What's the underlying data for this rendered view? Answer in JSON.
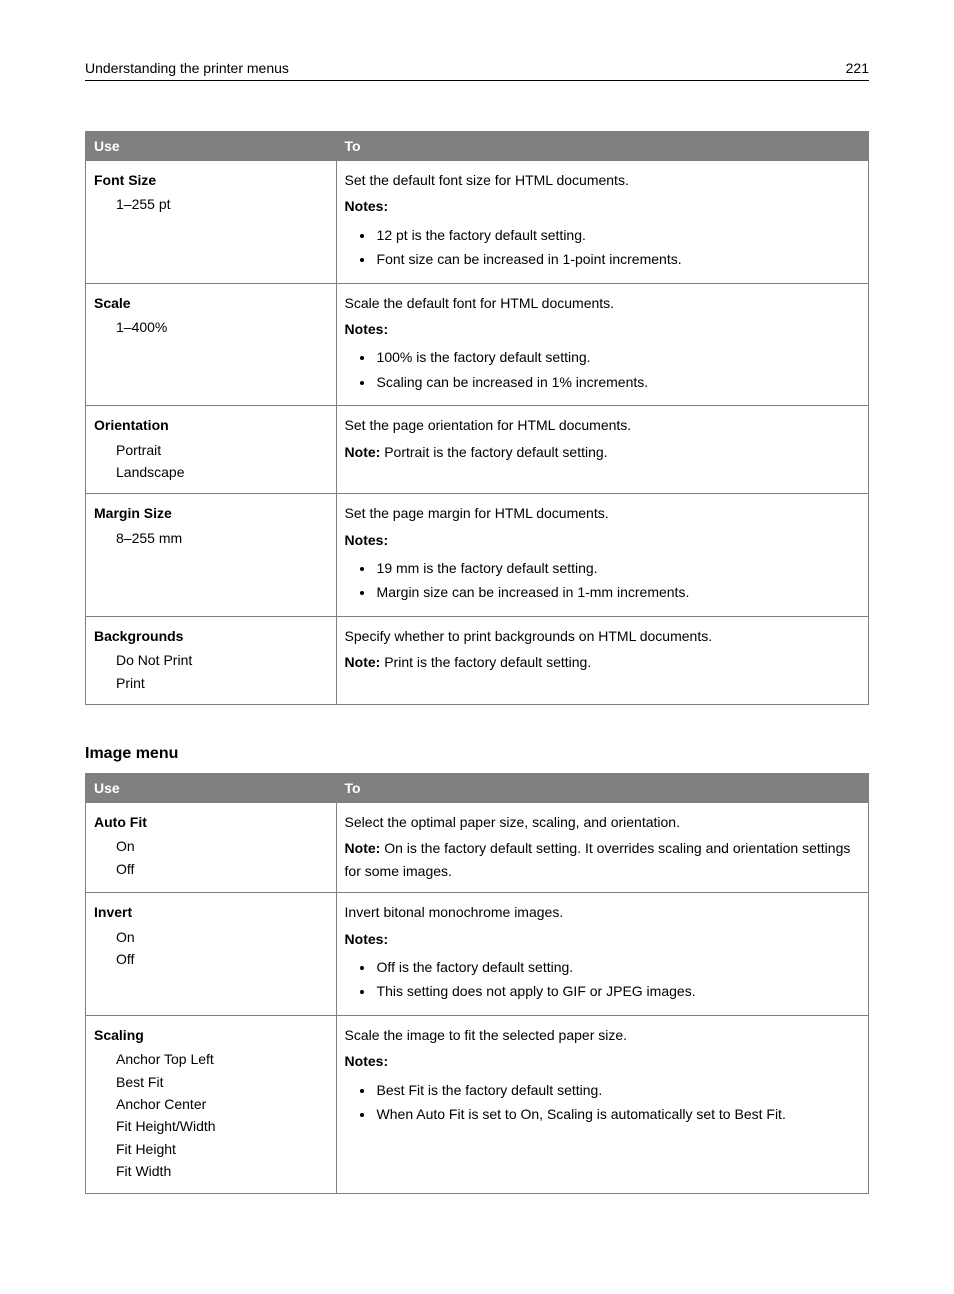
{
  "header": {
    "title": "Understanding the printer menus",
    "page": "221"
  },
  "table1": {
    "col_use": "Use",
    "col_to": "To",
    "rows": [
      {
        "title": "Font Size",
        "options": [
          "1–255 pt"
        ],
        "desc": "Set the default font size for HTML documents.",
        "notes_label": "Notes:",
        "bullets": [
          "12 pt is the factory default setting.",
          "Font size can be increased in 1‑point increments."
        ]
      },
      {
        "title": "Scale",
        "options": [
          "1–400%"
        ],
        "desc": "Scale the default font for HTML documents.",
        "notes_label": "Notes:",
        "bullets": [
          "100% is the factory default setting.",
          "Scaling can be increased in 1% increments."
        ]
      },
      {
        "title": "Orientation",
        "options": [
          "Portrait",
          "Landscape"
        ],
        "desc": "Set the page orientation for HTML documents.",
        "note_prefix": "Note:",
        "note_text": " Portrait is the factory default setting."
      },
      {
        "title": "Margin Size",
        "options": [
          "8–255 mm"
        ],
        "desc": "Set the page margin for HTML documents.",
        "notes_label": "Notes:",
        "bullets": [
          "19 mm is the factory default setting.",
          "Margin size can be increased in 1‑mm increments."
        ]
      },
      {
        "title": "Backgrounds",
        "options": [
          "Do Not Print",
          "Print"
        ],
        "desc": "Specify whether to print backgrounds on HTML documents.",
        "note_prefix": "Note:",
        "note_text": " Print is the factory default setting."
      }
    ]
  },
  "section2_heading": "Image menu",
  "table2": {
    "col_use": "Use",
    "col_to": "To",
    "rows": [
      {
        "title": "Auto Fit",
        "options": [
          "On",
          "Off"
        ],
        "desc": "Select the optimal paper size, scaling, and orientation.",
        "note_prefix": "Note:",
        "note_text": " On is the factory default setting. It overrides scaling and orientation settings for some images."
      },
      {
        "title": "Invert",
        "options": [
          "On",
          "Off"
        ],
        "desc": "Invert bitonal monochrome images.",
        "notes_label": "Notes:",
        "bullets": [
          "Off is the factory default setting.",
          "This setting does not apply to GIF or JPEG images."
        ]
      },
      {
        "title": "Scaling",
        "options": [
          "Anchor Top Left",
          "Best Fit",
          "Anchor Center",
          "Fit Height/Width",
          "Fit Height",
          "Fit Width"
        ],
        "desc": "Scale the image to fit the selected paper size.",
        "notes_label": "Notes:",
        "bullets": [
          "Best Fit is the factory default setting.",
          "When Auto Fit is set to On, Scaling is automatically set to Best Fit."
        ]
      }
    ]
  }
}
